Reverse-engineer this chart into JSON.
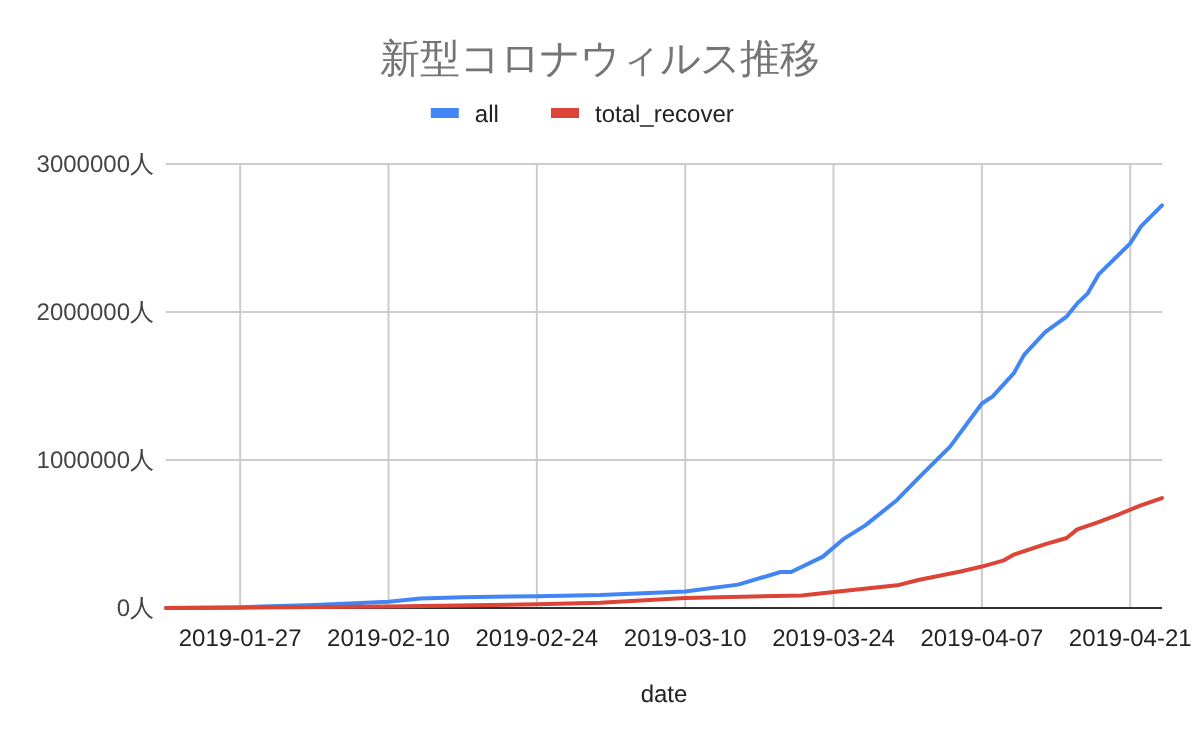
{
  "chart_data": {
    "type": "line",
    "title": "新型コロナウィルス推移",
    "xlabel": "date",
    "legend": "top",
    "grid": true,
    "line_style": "solid",
    "marker": "none",
    "xlim": [
      "2019-01-20",
      "2019-04-24"
    ],
    "xticks": [
      "2019-01-27",
      "2019-02-10",
      "2019-02-24",
      "2019-03-10",
      "2019-03-24",
      "2019-04-07",
      "2019-04-21"
    ],
    "ylim": [
      0,
      3000000
    ],
    "yticks": [
      {
        "value": 0,
        "label": "0人"
      },
      {
        "value": 1000000,
        "label": "1000000人"
      },
      {
        "value": 2000000,
        "label": "2000000人"
      },
      {
        "value": 3000000,
        "label": "3000000人"
      }
    ],
    "series": [
      {
        "name": "all",
        "color": "#4285f4",
        "x": [
          "2019-01-20",
          "2019-01-27",
          "2019-02-03",
          "2019-02-10",
          "2019-02-13",
          "2019-02-17",
          "2019-02-24",
          "2019-03-02",
          "2019-03-10",
          "2019-03-15",
          "2019-03-19",
          "2019-03-20",
          "2019-03-23",
          "2019-03-25",
          "2019-03-27",
          "2019-03-30",
          "2019-04-01",
          "2019-04-04",
          "2019-04-07",
          "2019-04-08",
          "2019-04-10",
          "2019-04-11",
          "2019-04-13",
          "2019-04-15",
          "2019-04-16",
          "2019-04-17",
          "2019-04-18",
          "2019-04-21",
          "2019-04-22",
          "2019-04-24"
        ],
        "values": [
          500,
          5000,
          20000,
          43000,
          64000,
          73000,
          80000,
          88000,
          112000,
          158000,
          243000,
          243000,
          347000,
          469000,
          558000,
          730000,
          878000,
          1090000,
          1382000,
          1428000,
          1585000,
          1712000,
          1865000,
          1969000,
          2058000,
          2126000,
          2252000,
          2464000,
          2577000,
          2720000
        ]
      },
      {
        "name": "total_recover",
        "color": "#db4437",
        "x": [
          "2019-01-20",
          "2019-01-27",
          "2019-02-10",
          "2019-02-24",
          "2019-03-02",
          "2019-03-10",
          "2019-03-21",
          "2019-03-24",
          "2019-03-30",
          "2019-04-01",
          "2019-04-05",
          "2019-04-07",
          "2019-04-09",
          "2019-04-10",
          "2019-04-13",
          "2019-04-15",
          "2019-04-16",
          "2019-04-18",
          "2019-04-20",
          "2019-04-22",
          "2019-04-24"
        ],
        "values": [
          0,
          2000,
          10000,
          25000,
          35000,
          68000,
          85000,
          108000,
          153000,
          189000,
          247000,
          280000,
          320000,
          360000,
          432000,
          473000,
          531000,
          581000,
          635000,
          693000,
          743000
        ]
      }
    ]
  }
}
